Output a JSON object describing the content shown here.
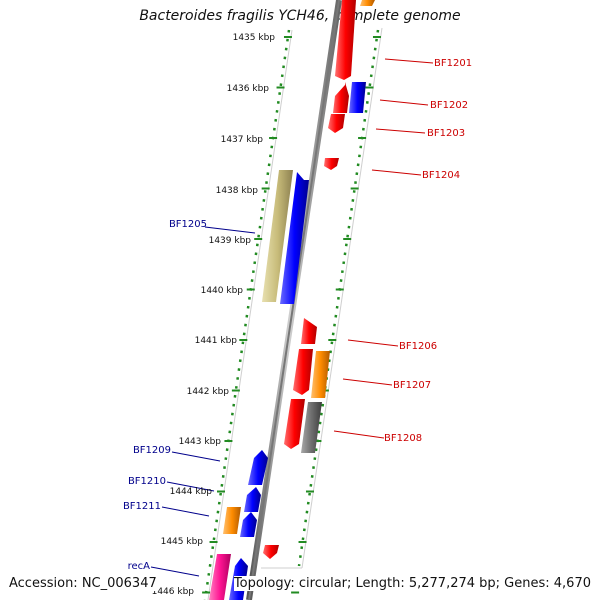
{
  "title": "Bacteroides fragilis YCH46, complete genome",
  "accession": "Accession: NC_006347",
  "topology": "Topology: circular; Length: 5,277,274 bp; Genes: 4,670",
  "colors": {
    "forward_gene": "#ff0000",
    "reverse_gene": "#0000ff",
    "orange_gene": "#ff8c00",
    "gray_gene": "#6e6e6e",
    "khaki_gene": "#c8bc7a",
    "pink_gene": "#ff1493",
    "backbone": "#888888",
    "track_dots": "#228b22",
    "label_right": "#cc0000",
    "label_left": "#00008b"
  },
  "scale_ticks": [
    "1435 kbp",
    "1436 kbp",
    "1437 kbp",
    "1438 kbp",
    "1439 kbp",
    "1440 kbp",
    "1441 kbp",
    "1442 kbp",
    "1443 kbp",
    "1444 kbp",
    "1445 kbp",
    "1446 kbp"
  ],
  "right_labels": [
    "BF1201",
    "BF1202",
    "BF1203",
    "BF1204",
    "BF1206",
    "BF1207",
    "BF1208"
  ],
  "left_labels": [
    "BF1205",
    "BF1209",
    "BF1210",
    "BF1211",
    "recA"
  ]
}
